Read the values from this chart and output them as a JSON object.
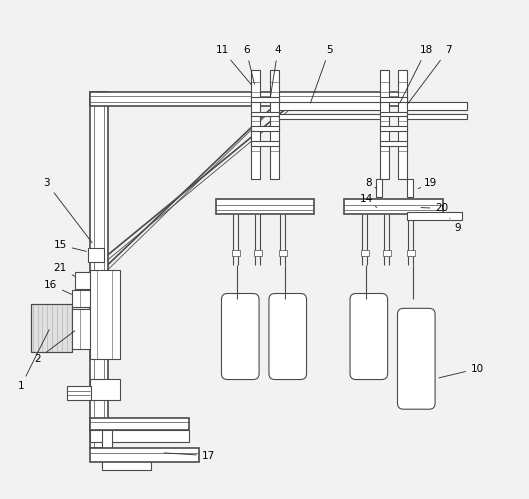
{
  "bg_color": "#f2f2f2",
  "line_color": "#4a4a4a",
  "lw": 0.8,
  "lw2": 1.2
}
